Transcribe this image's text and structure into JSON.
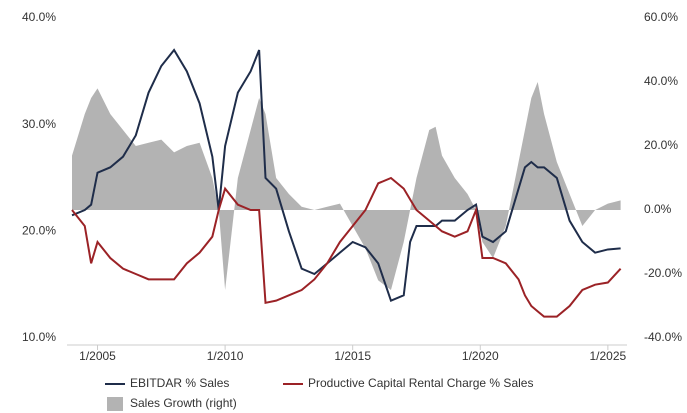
{
  "chart_data": {
    "type": "line",
    "x": [
      "2004-01",
      "2004-07",
      "2004-10",
      "2005-01",
      "2005-07",
      "2006-01",
      "2006-07",
      "2007-01",
      "2007-07",
      "2008-01",
      "2008-07",
      "2009-01",
      "2009-07",
      "2009-10",
      "2010-01",
      "2010-07",
      "2011-01",
      "2011-05",
      "2011-08",
      "2012-01",
      "2012-07",
      "2013-01",
      "2013-07",
      "2014-01",
      "2014-07",
      "2015-01",
      "2015-07",
      "2016-01",
      "2016-07",
      "2017-01",
      "2017-04",
      "2017-07",
      "2018-01",
      "2018-04",
      "2018-07",
      "2019-01",
      "2019-07",
      "2019-11",
      "2020-02",
      "2020-07",
      "2021-01",
      "2021-07",
      "2021-10",
      "2022-01",
      "2022-04",
      "2022-07",
      "2023-01",
      "2023-07",
      "2024-01",
      "2024-07",
      "2025-01",
      "2025-07"
    ],
    "series": [
      {
        "name": "EBITDAR % Sales",
        "color": "#1f2d4a",
        "type": "line",
        "values": [
          21.5,
          22,
          22.5,
          25.5,
          26,
          27,
          29,
          33,
          35.5,
          37,
          35,
          32,
          27,
          22,
          28,
          33,
          35,
          37,
          25,
          24,
          20,
          16.5,
          16,
          17,
          18,
          19,
          18.5,
          17,
          13.5,
          14,
          19,
          20.5,
          20.5,
          20.5,
          21,
          21,
          22,
          22.5,
          19.5,
          19,
          20,
          24,
          26,
          26.5,
          26,
          26,
          25,
          21,
          19,
          18,
          18.3,
          18.4
        ]
      },
      {
        "name": "Productive Capital Rental Charge % Sales",
        "color": "#9b2226",
        "type": "line",
        "values": [
          22,
          20.5,
          17,
          19,
          17.5,
          16.5,
          16,
          15.5,
          15.5,
          15.5,
          17,
          18,
          19.5,
          22,
          24,
          22.5,
          22,
          22,
          13.3,
          13.5,
          14,
          14.5,
          15.5,
          17,
          19,
          20.5,
          22,
          24.5,
          25,
          24,
          23,
          22,
          21,
          20.5,
          20,
          19.5,
          20,
          22,
          17.5,
          17.5,
          17,
          15.5,
          14,
          13,
          12.5,
          12,
          12,
          13,
          14.5,
          15,
          15.2,
          16.5
        ]
      },
      {
        "name": "Sales Growth (right)",
        "color": "#b3b3b3",
        "type": "area",
        "axis": "y2",
        "values": [
          17,
          30,
          35,
          38,
          30,
          25,
          20,
          21,
          22,
          18,
          20,
          21,
          10,
          0,
          -25,
          10,
          25,
          35,
          30,
          10,
          5,
          1,
          0,
          1,
          2,
          -5,
          -12,
          -22,
          -25,
          -10,
          0,
          10,
          25,
          26,
          17,
          10,
          5,
          0,
          -10,
          -15,
          -5,
          15,
          25,
          35,
          40,
          30,
          15,
          5,
          -5,
          0,
          2,
          3
        ]
      }
    ],
    "xlim": [
      "2004-01",
      "2025-10"
    ],
    "xticks": [
      {
        "value": "2005-01",
        "label": "1/2005"
      },
      {
        "value": "2010-01",
        "label": "1/2010"
      },
      {
        "value": "2015-01",
        "label": "1/2015"
      },
      {
        "value": "2020-01",
        "label": "1/2020"
      },
      {
        "value": "2025-01",
        "label": "1/2025"
      }
    ],
    "ylim": [
      10,
      40
    ],
    "yticks": [
      {
        "value": 10,
        "label": "10.0%"
      },
      {
        "value": 20,
        "label": "20.0%"
      },
      {
        "value": 30,
        "label": "30.0%"
      },
      {
        "value": 40,
        "label": "40.0%"
      }
    ],
    "y2lim": [
      -40,
      60
    ],
    "y2ticks": [
      {
        "value": -40,
        "label": "-40.0%"
      },
      {
        "value": -20,
        "label": "-20.0%"
      },
      {
        "value": 0,
        "label": "0.0%"
      },
      {
        "value": 20,
        "label": "20.0%"
      },
      {
        "value": 40,
        "label": "40.0%"
      },
      {
        "value": 60,
        "label": "60.0%"
      }
    ],
    "grid": false,
    "legend": "bottom"
  }
}
